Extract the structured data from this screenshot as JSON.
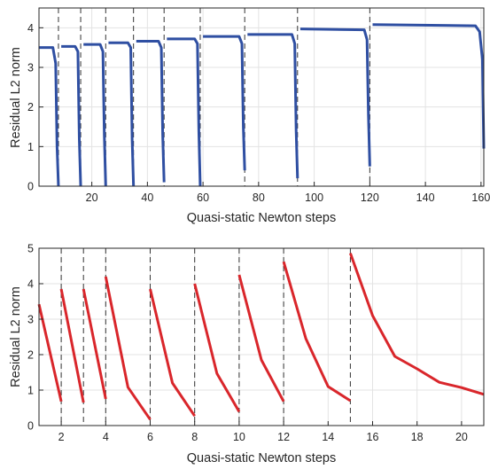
{
  "chart_data": [
    {
      "type": "line",
      "xlabel": "Quasi-static Newton steps",
      "ylabel": "Residual L2 norm",
      "xlim": [
        1,
        161
      ],
      "ylim": [
        0,
        4.5
      ],
      "xticks": [
        20,
        40,
        60,
        80,
        100,
        120,
        140,
        160
      ],
      "yticks": [
        0,
        1,
        2,
        3,
        4
      ],
      "grid": true,
      "line_color": "#2f4fa2",
      "dashed_lines_x": [
        8,
        16,
        25,
        35,
        46,
        59,
        75,
        94,
        120,
        161
      ],
      "series": [
        {
          "x": [
            1,
            6,
            7,
            7.5,
            8
          ],
          "y": [
            3.5,
            3.5,
            3.1,
            1.0,
            0.0
          ]
        },
        {
          "x": [
            9,
            14,
            15,
            15.5,
            16
          ],
          "y": [
            3.53,
            3.53,
            3.4,
            1.2,
            0.0
          ]
        },
        {
          "x": [
            17,
            23,
            24,
            24.5,
            25
          ],
          "y": [
            3.58,
            3.58,
            3.4,
            1.3,
            0.0
          ]
        },
        {
          "x": [
            26,
            33,
            34,
            34.5,
            35
          ],
          "y": [
            3.62,
            3.62,
            3.5,
            1.2,
            0.0
          ]
        },
        {
          "x": [
            36,
            44,
            45,
            45.5,
            46
          ],
          "y": [
            3.66,
            3.66,
            3.5,
            1.3,
            0.1
          ]
        },
        {
          "x": [
            47,
            57,
            58,
            58.5,
            59
          ],
          "y": [
            3.72,
            3.72,
            3.6,
            1.4,
            0.0
          ]
        },
        {
          "x": [
            60,
            73,
            74,
            74.5,
            75
          ],
          "y": [
            3.78,
            3.78,
            3.6,
            1.5,
            0.4
          ]
        },
        {
          "x": [
            76,
            92,
            93,
            93.5,
            94
          ],
          "y": [
            3.83,
            3.83,
            3.6,
            1.4,
            0.2
          ]
        },
        {
          "x": [
            95,
            118,
            119,
            119.5,
            120
          ],
          "y": [
            3.97,
            3.95,
            3.7,
            1.8,
            0.5
          ]
        },
        {
          "x": [
            121,
            158,
            159.5,
            160.5,
            161
          ],
          "y": [
            4.08,
            4.05,
            3.9,
            3.2,
            0.95
          ]
        }
      ]
    },
    {
      "type": "line",
      "xlabel": "Quasi-static Newton steps",
      "ylabel": "Residual L2 norm",
      "xlim": [
        1,
        21
      ],
      "ylim": [
        0,
        5
      ],
      "xticks": [
        2,
        4,
        6,
        8,
        10,
        12,
        14,
        16,
        18,
        20
      ],
      "yticks": [
        0,
        1,
        2,
        3,
        4,
        5
      ],
      "grid": true,
      "line_color": "#d9262b",
      "dashed_lines_x": [
        2,
        3,
        4,
        6,
        8,
        10,
        12,
        15
      ],
      "series": [
        {
          "x": [
            1,
            2
          ],
          "y": [
            3.42,
            0.68
          ]
        },
        {
          "x": [
            2,
            3
          ],
          "y": [
            3.85,
            0.65
          ]
        },
        {
          "x": [
            3,
            4
          ],
          "y": [
            3.85,
            0.75
          ]
        },
        {
          "x": [
            4,
            5,
            6
          ],
          "y": [
            4.2,
            1.08,
            0.17
          ]
        },
        {
          "x": [
            6,
            7,
            8
          ],
          "y": [
            3.85,
            1.2,
            0.27
          ]
        },
        {
          "x": [
            8,
            9,
            10
          ],
          "y": [
            4.0,
            1.47,
            0.39
          ]
        },
        {
          "x": [
            10,
            11,
            12
          ],
          "y": [
            4.25,
            1.85,
            0.68
          ]
        },
        {
          "x": [
            12,
            13,
            14,
            15
          ],
          "y": [
            4.62,
            2.45,
            1.1,
            0.7
          ]
        },
        {
          "x": [
            15,
            16,
            17,
            18,
            19,
            20,
            21
          ],
          "y": [
            4.86,
            3.1,
            1.95,
            1.6,
            1.22,
            1.07,
            0.88
          ]
        }
      ]
    }
  ]
}
